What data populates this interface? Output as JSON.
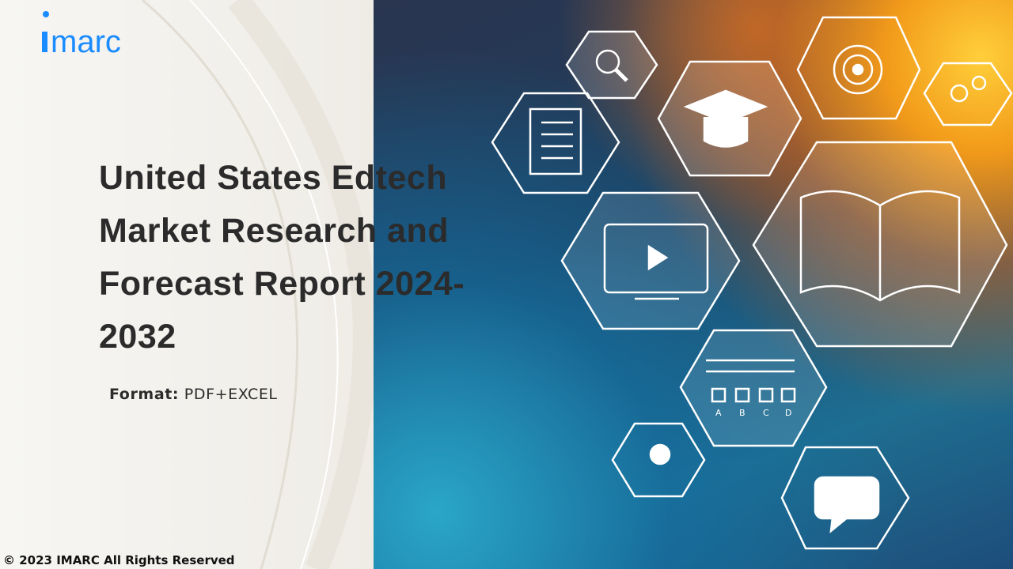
{
  "logo": {
    "text": "imarc",
    "color": "#1a8cff"
  },
  "title": {
    "lines": [
      "United States Edtech",
      "Market Research and",
      "Forecast Report 2024-",
      "2032"
    ]
  },
  "format": {
    "label": "Format:",
    "value": "PDF+EXCEL"
  },
  "footer": {
    "copyright": "© 2023 IMARC All Rights Reserved"
  },
  "hero_image": {
    "icons": [
      "search-icon",
      "checklist-icon",
      "graduation-cap-icon",
      "target-icon",
      "molecule-icon",
      "video-monitor-icon",
      "open-book-icon",
      "quiz-abcd-icon",
      "lightbulb-icon",
      "chat-bubble-icon"
    ],
    "quiz_options": [
      "A",
      "B",
      "C",
      "D"
    ]
  }
}
